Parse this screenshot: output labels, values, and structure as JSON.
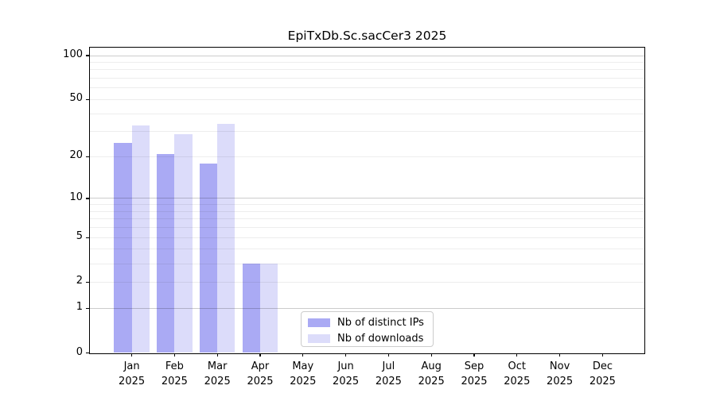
{
  "figure": {
    "background": "#ffffff"
  },
  "chart_data": {
    "type": "bar",
    "title": "EpiTxDb.Sc.sacCer3 2025",
    "categories": [
      "Jan",
      "Feb",
      "Mar",
      "Apr",
      "May",
      "Jun",
      "Jul",
      "Aug",
      "Sep",
      "Oct",
      "Nov",
      "Dec"
    ],
    "year": "2025",
    "series": [
      {
        "name": "Nb of distinct IPs",
        "slug": "distinct-ips",
        "color": "#aaaaf4",
        "values": [
          25,
          21,
          18,
          3,
          0,
          0,
          0,
          0,
          0,
          0,
          0,
          0
        ]
      },
      {
        "name": "Nb of downloads",
        "slug": "downloads",
        "color": "#dcdcfa",
        "values": [
          33,
          29,
          34,
          3,
          0,
          0,
          0,
          0,
          0,
          0,
          0,
          0
        ]
      }
    ],
    "yscale": "log1p",
    "ylim": [
      0,
      100
    ],
    "yticks": [
      0,
      1,
      2,
      5,
      10,
      20,
      50,
      100
    ],
    "grid": {
      "major": [
        1,
        10,
        100
      ],
      "minor": [
        2,
        3,
        4,
        5,
        6,
        7,
        8,
        9,
        20,
        30,
        40,
        50,
        60,
        70,
        80,
        90
      ],
      "major_color": "#cccccc",
      "minor_color": "#ededed"
    },
    "legend": {
      "position": "lower center",
      "entries": [
        "Nb of distinct IPs",
        "Nb of downloads"
      ]
    },
    "axis_color": "#000000",
    "text_color": "#000000"
  }
}
